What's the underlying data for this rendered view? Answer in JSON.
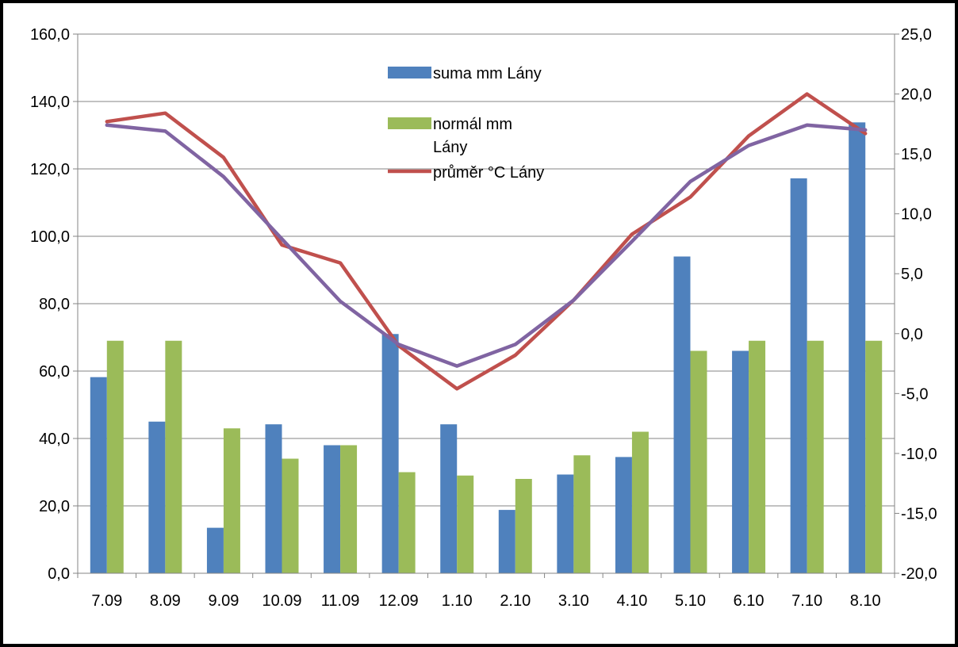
{
  "chart_data": {
    "type": "bar",
    "categories": [
      "7.09",
      "8.09",
      "9.09",
      "10.09",
      "11.09",
      "12.09",
      "1.10",
      "2.10",
      "3.10",
      "4.10",
      "5.10",
      "6.10",
      "7.10",
      "8.10"
    ],
    "series": [
      {
        "name": "suma mm Lány",
        "kind": "bar",
        "axis": "left",
        "color": "#4F81BD",
        "values": [
          58.2,
          45.0,
          13.5,
          44.2,
          38.0,
          71.0,
          44.2,
          18.8,
          29.3,
          34.5,
          94.0,
          66.0,
          117.2,
          133.8
        ]
      },
      {
        "name": "normál mm Lány",
        "kind": "bar",
        "axis": "left",
        "color": "#9BBB59",
        "values": [
          69.0,
          69.0,
          43.0,
          34.0,
          38.0,
          30.0,
          29.0,
          28.0,
          35.0,
          42.0,
          66.0,
          69.0,
          69.0,
          69.0
        ]
      },
      {
        "name": "průměr °C Lány",
        "kind": "line",
        "axis": "right",
        "color": "#C0504D",
        "values": [
          17.7,
          18.4,
          14.7,
          7.4,
          5.9,
          -1.0,
          -4.6,
          -1.8,
          2.8,
          8.3,
          11.4,
          16.5,
          20.0,
          16.7
        ]
      },
      {
        "kind": "line",
        "axis": "right",
        "color": "#8064A2",
        "values": [
          17.4,
          16.9,
          13.1,
          7.9,
          2.7,
          -0.9,
          -2.7,
          -0.9,
          2.8,
          7.7,
          12.7,
          15.7,
          17.4,
          17.0
        ]
      }
    ],
    "ylim": [
      0,
      160
    ],
    "yticks": [
      "0,0",
      "20,0",
      "40,0",
      "60,0",
      "80,0",
      "100,0",
      "120,0",
      "140,0",
      "160,0"
    ],
    "y2lim": [
      -20,
      25
    ],
    "y2ticks": [
      "-20,0",
      "-15,0",
      "-10,0",
      "-5,0",
      "0,0",
      "5,0",
      "10,0",
      "15,0",
      "20,0",
      "25,0"
    ],
    "grid": true,
    "legend_position": "top-center",
    "title": "",
    "xlabel": "",
    "ylabel": ""
  }
}
